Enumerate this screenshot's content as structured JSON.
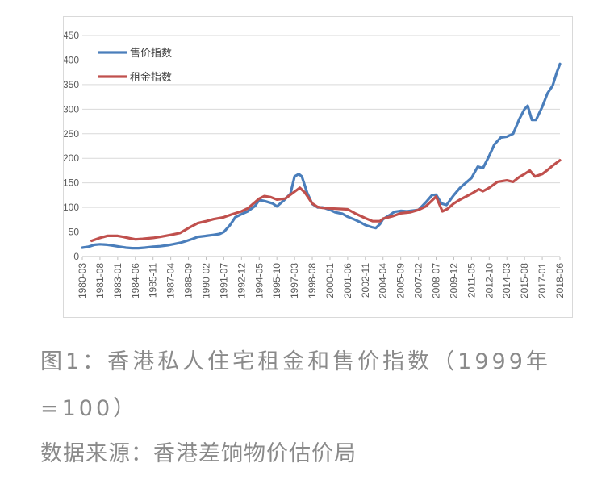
{
  "figure": {
    "caption": "图1：香港私人住宅租金和售价指数（1999年=100）",
    "source": "数据来源：香港差饷物价估价局"
  },
  "chart_data": {
    "type": "line",
    "title": "",
    "xlabel": "",
    "ylabel": "",
    "ylim": [
      0,
      450
    ],
    "yticks": [
      0,
      50,
      100,
      150,
      200,
      250,
      300,
      350,
      400,
      450
    ],
    "xlim": [
      "1980-03",
      "2018-06"
    ],
    "xtick_labels": [
      "1980-03",
      "1981-08",
      "1983-01",
      "1984-06",
      "1985-11",
      "1987-04",
      "1988-09",
      "1990-02",
      "1991-07",
      "1992-12",
      "1994-05",
      "1995-10",
      "1997-03",
      "1998-08",
      "2000-01",
      "2001-06",
      "2002-11",
      "2004-04",
      "2005-09",
      "2007-02",
      "2008-07",
      "2009-12",
      "2011-05",
      "2012-10",
      "2014-03",
      "2015-08",
      "2017-01",
      "2018-06"
    ],
    "grid": true,
    "legend_position": "top-left",
    "series": [
      {
        "name": "售价指数",
        "color": "#4a7ebb",
        "points": [
          [
            "1980-03",
            18
          ],
          [
            "1980-09",
            20
          ],
          [
            "1981-03",
            24
          ],
          [
            "1981-08",
            25
          ],
          [
            "1982-03",
            24
          ],
          [
            "1982-09",
            22
          ],
          [
            "1983-03",
            20
          ],
          [
            "1983-09",
            18
          ],
          [
            "1984-03",
            17
          ],
          [
            "1984-09",
            17
          ],
          [
            "1985-03",
            18
          ],
          [
            "1985-11",
            20
          ],
          [
            "1986-06",
            21
          ],
          [
            "1987-01",
            23
          ],
          [
            "1987-06",
            25
          ],
          [
            "1988-01",
            28
          ],
          [
            "1988-06",
            31
          ],
          [
            "1989-01",
            36
          ],
          [
            "1989-06",
            40
          ],
          [
            "1990-02",
            42
          ],
          [
            "1990-09",
            44
          ],
          [
            "1991-03",
            46
          ],
          [
            "1991-07",
            50
          ],
          [
            "1992-01",
            64
          ],
          [
            "1992-06",
            80
          ],
          [
            "1992-12",
            86
          ],
          [
            "1993-06",
            92
          ],
          [
            "1994-01",
            103
          ],
          [
            "1994-05",
            115
          ],
          [
            "1994-10",
            113
          ],
          [
            "1995-06",
            108
          ],
          [
            "1995-10",
            102
          ],
          [
            "1996-05",
            115
          ],
          [
            "1996-11",
            128
          ],
          [
            "1997-03",
            163
          ],
          [
            "1997-07",
            168
          ],
          [
            "1997-10",
            163
          ],
          [
            "1998-03",
            130
          ],
          [
            "1998-08",
            107
          ],
          [
            "1999-01",
            100
          ],
          [
            "1999-06",
            100
          ],
          [
            "2000-01",
            95
          ],
          [
            "2000-06",
            90
          ],
          [
            "2001-01",
            87
          ],
          [
            "2001-06",
            81
          ],
          [
            "2002-01",
            75
          ],
          [
            "2002-06",
            70
          ],
          [
            "2002-11",
            64
          ],
          [
            "2003-05",
            60
          ],
          [
            "2003-09",
            58
          ],
          [
            "2004-01",
            66
          ],
          [
            "2004-04",
            76
          ],
          [
            "2004-10",
            84
          ],
          [
            "2005-03",
            91
          ],
          [
            "2005-09",
            93
          ],
          [
            "2006-03",
            92
          ],
          [
            "2007-02",
            95
          ],
          [
            "2007-09",
            110
          ],
          [
            "2008-03",
            125
          ],
          [
            "2008-07",
            126
          ],
          [
            "2008-12",
            108
          ],
          [
            "2009-05",
            105
          ],
          [
            "2009-12",
            125
          ],
          [
            "2010-06",
            140
          ],
          [
            "2011-05",
            160
          ],
          [
            "2011-11",
            183
          ],
          [
            "2012-04",
            180
          ],
          [
            "2012-10",
            205
          ],
          [
            "2013-03",
            228
          ],
          [
            "2013-09",
            242
          ],
          [
            "2014-03",
            244
          ],
          [
            "2014-09",
            250
          ],
          [
            "2015-03",
            280
          ],
          [
            "2015-08",
            300
          ],
          [
            "2015-11",
            307
          ],
          [
            "2016-03",
            278
          ],
          [
            "2016-07",
            278
          ],
          [
            "2017-01",
            305
          ],
          [
            "2017-06",
            332
          ],
          [
            "2017-11",
            348
          ],
          [
            "2018-03",
            375
          ],
          [
            "2018-06",
            392
          ]
        ]
      },
      {
        "name": "租金指数",
        "color": "#c0504d",
        "points": [
          [
            "1980-12",
            32
          ],
          [
            "1981-08",
            38
          ],
          [
            "1982-03",
            42
          ],
          [
            "1983-01",
            42
          ],
          [
            "1983-06",
            40
          ],
          [
            "1984-01",
            37
          ],
          [
            "1984-06",
            35
          ],
          [
            "1985-01",
            36
          ],
          [
            "1985-11",
            38
          ],
          [
            "1986-06",
            40
          ],
          [
            "1987-04",
            44
          ],
          [
            "1988-01",
            48
          ],
          [
            "1988-09",
            58
          ],
          [
            "1989-06",
            68
          ],
          [
            "1990-02",
            72
          ],
          [
            "1990-09",
            76
          ],
          [
            "1991-07",
            80
          ],
          [
            "1992-03",
            86
          ],
          [
            "1992-12",
            92
          ],
          [
            "1993-06",
            98
          ],
          [
            "1994-05",
            118
          ],
          [
            "1994-10",
            123
          ],
          [
            "1995-04",
            121
          ],
          [
            "1995-10",
            116
          ],
          [
            "1996-06",
            118
          ],
          [
            "1997-03",
            132
          ],
          [
            "1997-08",
            140
          ],
          [
            "1998-01",
            130
          ],
          [
            "1998-08",
            108
          ],
          [
            "1999-01",
            101
          ],
          [
            "1999-06",
            99
          ],
          [
            "2000-01",
            98
          ],
          [
            "2001-06",
            96
          ],
          [
            "2002-01",
            88
          ],
          [
            "2002-11",
            78
          ],
          [
            "2003-06",
            72
          ],
          [
            "2004-01",
            72
          ],
          [
            "2004-04",
            77
          ],
          [
            "2005-01",
            82
          ],
          [
            "2005-09",
            88
          ],
          [
            "2006-06",
            90
          ],
          [
            "2007-02",
            95
          ],
          [
            "2007-09",
            102
          ],
          [
            "2008-07",
            122
          ],
          [
            "2009-01",
            92
          ],
          [
            "2009-06",
            97
          ],
          [
            "2009-12",
            108
          ],
          [
            "2010-06",
            116
          ],
          [
            "2011-05",
            128
          ],
          [
            "2011-12",
            137
          ],
          [
            "2012-04",
            133
          ],
          [
            "2012-10",
            140
          ],
          [
            "2013-06",
            152
          ],
          [
            "2014-03",
            155
          ],
          [
            "2014-09",
            152
          ],
          [
            "2015-03",
            162
          ],
          [
            "2015-08",
            168
          ],
          [
            "2016-01",
            175
          ],
          [
            "2016-06",
            163
          ],
          [
            "2017-01",
            168
          ],
          [
            "2017-06",
            176
          ],
          [
            "2017-11",
            185
          ],
          [
            "2018-06",
            196
          ]
        ]
      }
    ]
  }
}
